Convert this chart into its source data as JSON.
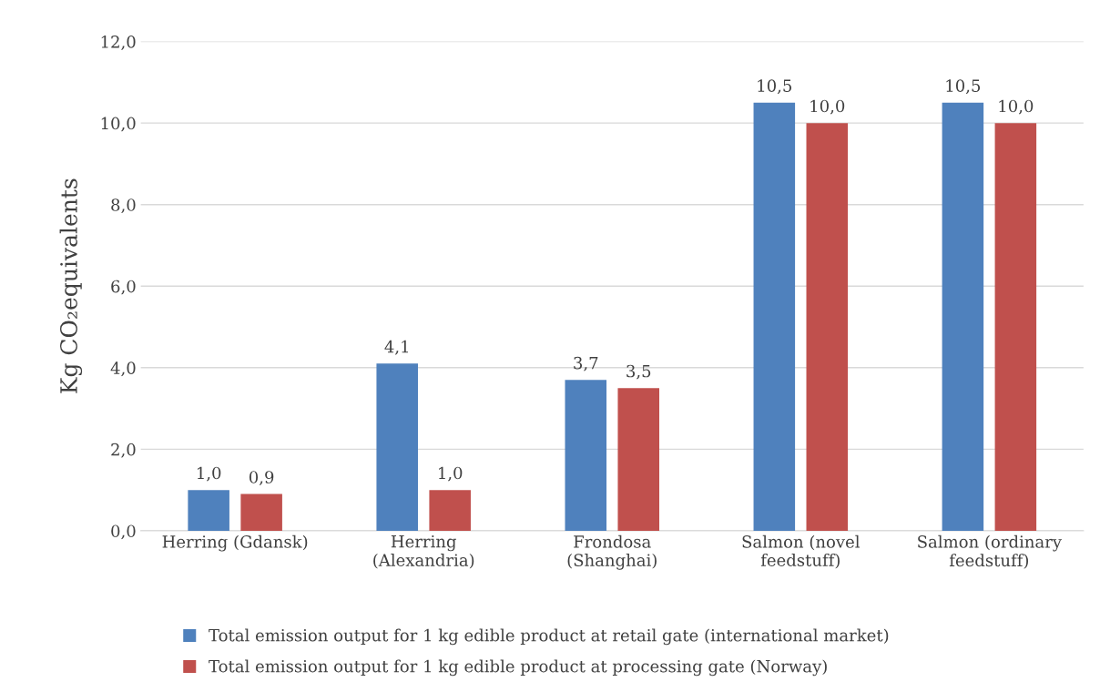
{
  "chart_data": {
    "type": "bar",
    "ylabel": "Kg CO₂equivalents",
    "categories": [
      "Herring (Gdansk)",
      "Herring\n(Alexandria)",
      "Frondosa\n(Shanghai)",
      "Salmon (novel\nfeedstuff)",
      "Salmon (ordinary\nfeedstuff)"
    ],
    "series": [
      {
        "name": "Total emission output for 1 kg edible product at retail gate (international market)",
        "color": "#4f81bd",
        "values": [
          1.0,
          4.1,
          3.7,
          10.5,
          10.5
        ],
        "value_labels": [
          "1,0",
          "4,1",
          "3,7",
          "10,5",
          "10,5"
        ]
      },
      {
        "name": "Total emission output for 1 kg edible product at processing gate (Norway)",
        "color": "#c0504d",
        "values": [
          0.9,
          1.0,
          3.5,
          10.0,
          10.0
        ],
        "value_labels": [
          "0,9",
          "1,0",
          "3,5",
          "10,0",
          "10,0"
        ]
      }
    ],
    "ylim": [
      0,
      12
    ],
    "yticks": [
      {
        "value": 0,
        "label": "0,0"
      },
      {
        "value": 2,
        "label": "2,0"
      },
      {
        "value": 4,
        "label": "4,0"
      },
      {
        "value": 6,
        "label": "6,0"
      },
      {
        "value": 8,
        "label": "8,0"
      },
      {
        "value": 10,
        "label": "10,0"
      },
      {
        "value": 12,
        "label": "12,0"
      }
    ],
    "grid": "y",
    "legend": "bottom"
  }
}
